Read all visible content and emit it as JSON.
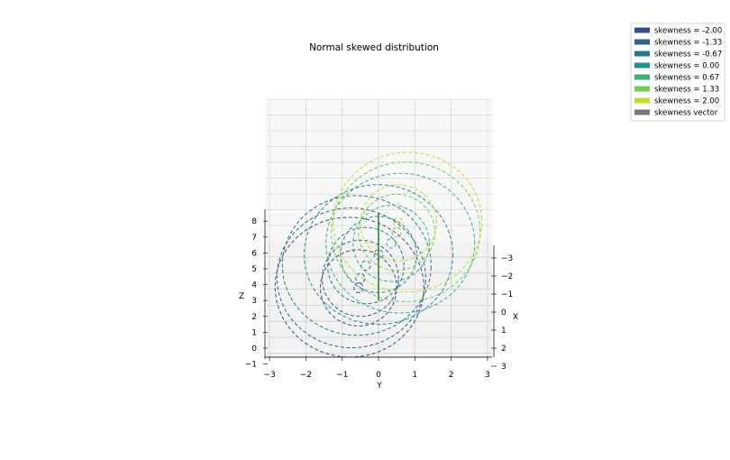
{
  "chart_data": {
    "type": "contour3d",
    "title": "Normal skewed distribution",
    "xlabel": "X",
    "ylabel": "Y",
    "zlabel": "Z",
    "x_ticks": [
      "−3",
      "−2",
      "−1",
      "0",
      "1",
      "2",
      "3"
    ],
    "y_ticks": [
      "−3",
      "−2",
      "−1",
      "0",
      "1",
      "2",
      "3"
    ],
    "z_ticks": [
      "−1",
      "0",
      "1",
      "2",
      "3",
      "4",
      "5",
      "6",
      "7",
      "8"
    ],
    "xlim": [
      -3,
      3
    ],
    "ylim": [
      -3,
      3
    ],
    "zlim": [
      -1,
      8
    ],
    "grid": true,
    "legend_position": "top-right",
    "series": [
      {
        "name": "skewness = -2.00",
        "skew": -2.0,
        "color": "#3b4a8a",
        "center_y": -0.55,
        "center_z": 3.8
      },
      {
        "name": "skewness = -1.33",
        "skew": -1.33,
        "color": "#30628c",
        "center_y": -0.5,
        "center_z": 4.4
      },
      {
        "name": "skewness = -0.67",
        "skew": -0.67,
        "color": "#267a8c",
        "center_y": -0.35,
        "center_z": 5.2
      },
      {
        "name": "skewness = 0.00",
        "skew": 0.0,
        "color": "#21918c",
        "center_y": 0.0,
        "center_z": 5.9
      },
      {
        "name": "skewness = 0.67",
        "skew": 0.67,
        "color": "#3bb27a",
        "center_y": 0.35,
        "center_z": 6.6
      },
      {
        "name": "skewness = 1.33",
        "skew": 1.33,
        "color": "#6ece58",
        "center_y": 0.5,
        "center_z": 7.3
      },
      {
        "name": "skewness = 2.00",
        "skew": 2.0,
        "color": "#c2df23",
        "center_y": 0.55,
        "center_z": 7.9
      }
    ],
    "skewness_vector": {
      "name": "skewness vector",
      "color": "#777777",
      "from_z": 3.0,
      "to_z": 8.5
    }
  }
}
